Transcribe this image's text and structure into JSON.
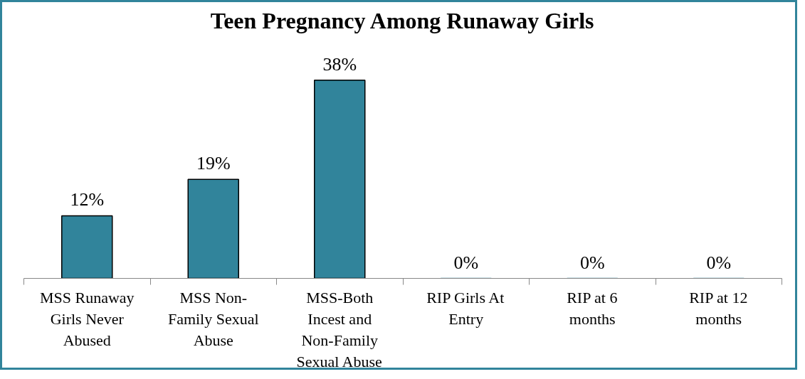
{
  "chart_data": {
    "type": "bar",
    "title": "Teen Pregnancy Among Runaway Girls",
    "categories": [
      "MSS Runaway Girls Never Abused",
      "MSS Non-Family Sexual Abuse",
      "MSS-Both Incest and Non-Family Sexual Abuse",
      "RIP Girls At Entry",
      "RIP at 6 months",
      "RIP at 12 months"
    ],
    "values": [
      12,
      19,
      38,
      0,
      0,
      0
    ],
    "value_labels": [
      "12%",
      "19%",
      "38%",
      "0%",
      "0%",
      "0%"
    ],
    "color": "#31849b",
    "grid": false,
    "tick_labels": "x"
  }
}
